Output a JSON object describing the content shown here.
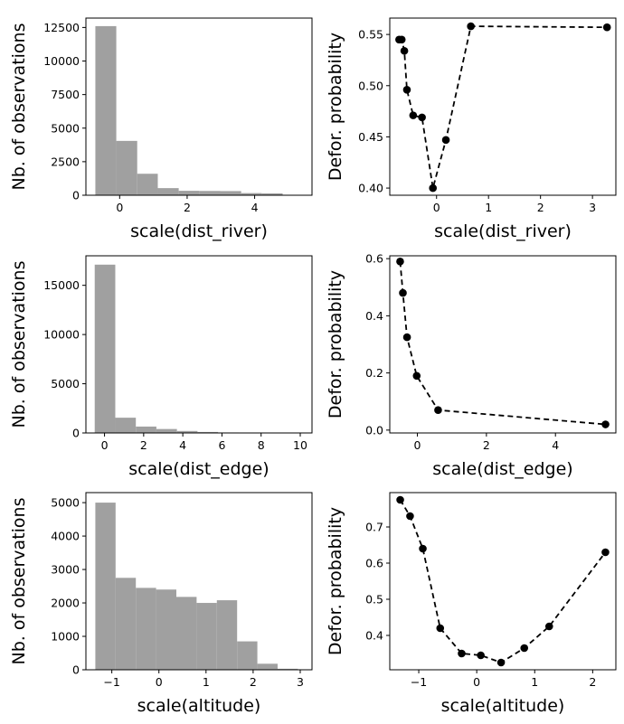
{
  "chart_data": [
    {
      "type": "bar",
      "xlabel": "scale(dist_river)",
      "ylabel": "Nb. of observations",
      "xlim": [
        -1.0,
        5.7
      ],
      "ylim": [
        0,
        13200
      ],
      "xticks": [
        0,
        2,
        4
      ],
      "yticks": [
        0,
        2500,
        5000,
        7500,
        10000,
        12500
      ],
      "bins": [
        {
          "x0": -0.72,
          "x1": -0.1,
          "count": 12600
        },
        {
          "x0": -0.1,
          "x1": 0.52,
          "count": 4050
        },
        {
          "x0": 0.52,
          "x1": 1.13,
          "count": 1600
        },
        {
          "x0": 1.13,
          "x1": 1.75,
          "count": 530
        },
        {
          "x0": 1.75,
          "x1": 2.36,
          "count": 330
        },
        {
          "x0": 2.36,
          "x1": 2.98,
          "count": 320
        },
        {
          "x0": 2.98,
          "x1": 3.6,
          "count": 310
        },
        {
          "x0": 3.6,
          "x1": 4.21,
          "count": 160
        },
        {
          "x0": 4.21,
          "x1": 4.83,
          "count": 140
        }
      ]
    },
    {
      "type": "line",
      "xlabel": "scale(dist_river)",
      "ylabel": "Defor. probability",
      "xlim": [
        -0.9,
        3.45
      ],
      "ylim": [
        0.393,
        0.566
      ],
      "xticks": [
        0,
        1,
        2,
        3
      ],
      "yticks": [
        0.4,
        0.45,
        0.5,
        0.55
      ],
      "tick_decimals": 2,
      "x": [
        -0.72,
        -0.67,
        -0.62,
        -0.57,
        -0.45,
        -0.28,
        -0.07,
        0.18,
        0.66,
        3.28
      ],
      "y": [
        0.545,
        0.545,
        0.534,
        0.496,
        0.471,
        0.469,
        0.4,
        0.447,
        0.558,
        0.557
      ]
    },
    {
      "type": "bar",
      "xlabel": "scale(dist_edge)",
      "ylabel": "Nb. of observations",
      "xlim": [
        -0.95,
        10.6
      ],
      "ylim": [
        0,
        18000
      ],
      "xticks": [
        0,
        2,
        4,
        6,
        8,
        10
      ],
      "yticks": [
        0,
        5000,
        10000,
        15000
      ],
      "bins": [
        {
          "x0": -0.5,
          "x1": 0.55,
          "count": 17100
        },
        {
          "x0": 0.55,
          "x1": 1.6,
          "count": 1550
        },
        {
          "x0": 1.6,
          "x1": 2.65,
          "count": 650
        },
        {
          "x0": 2.65,
          "x1": 3.7,
          "count": 400
        },
        {
          "x0": 3.7,
          "x1": 4.75,
          "count": 200
        },
        {
          "x0": 4.75,
          "x1": 5.8,
          "count": 100
        },
        {
          "x0": 5.8,
          "x1": 6.85,
          "count": 50
        },
        {
          "x0": 6.85,
          "x1": 7.9,
          "count": 20
        },
        {
          "x0": 7.9,
          "x1": 8.95,
          "count": 10
        },
        {
          "x0": 8.95,
          "x1": 10.0,
          "count": 5
        }
      ]
    },
    {
      "type": "line",
      "xlabel": "scale(dist_edge)",
      "ylabel": "Defor. probability",
      "xlim": [
        -0.8,
        5.75
      ],
      "ylim": [
        -0.01,
        0.61
      ],
      "xticks": [
        0,
        2,
        4
      ],
      "yticks": [
        0.0,
        0.2,
        0.4,
        0.6
      ],
      "tick_decimals": 1,
      "x": [
        -0.5,
        -0.42,
        -0.3,
        -0.02,
        0.6,
        5.45
      ],
      "y": [
        0.59,
        0.48,
        0.325,
        0.19,
        0.07,
        0.02
      ]
    },
    {
      "type": "bar",
      "xlabel": "scale(altitude)",
      "ylabel": "Nb. of observations",
      "xlim": [
        -1.55,
        3.25
      ],
      "ylim": [
        0,
        5300
      ],
      "xticks": [
        -1,
        0,
        1,
        2,
        3
      ],
      "yticks": [
        0,
        1000,
        2000,
        3000,
        4000,
        5000
      ],
      "bins": [
        {
          "x0": -1.35,
          "x1": -0.92,
          "count": 5000
        },
        {
          "x0": -0.92,
          "x1": -0.49,
          "count": 2750
        },
        {
          "x0": -0.49,
          "x1": -0.06,
          "count": 2450
        },
        {
          "x0": -0.06,
          "x1": 0.37,
          "count": 2400
        },
        {
          "x0": 0.37,
          "x1": 0.8,
          "count": 2180
        },
        {
          "x0": 0.8,
          "x1": 1.23,
          "count": 2000
        },
        {
          "x0": 1.23,
          "x1": 1.66,
          "count": 2080
        },
        {
          "x0": 1.66,
          "x1": 2.09,
          "count": 850
        },
        {
          "x0": 2.09,
          "x1": 2.52,
          "count": 180
        },
        {
          "x0": 2.52,
          "x1": 2.95,
          "count": 30
        }
      ]
    },
    {
      "type": "line",
      "xlabel": "scale(altitude)",
      "ylabel": "Defor. probability",
      "xlim": [
        -1.5,
        2.4
      ],
      "ylim": [
        0.305,
        0.795
      ],
      "xticks": [
        -1,
        0,
        1,
        2
      ],
      "yticks": [
        0.4,
        0.5,
        0.6,
        0.7
      ],
      "tick_decimals": 1,
      "x": [
        -1.32,
        -1.15,
        -0.93,
        -0.63,
        -0.26,
        0.07,
        0.42,
        0.82,
        1.25,
        2.22
      ],
      "y": [
        0.775,
        0.73,
        0.64,
        0.42,
        0.35,
        0.345,
        0.325,
        0.365,
        0.425,
        0.63
      ]
    }
  ]
}
